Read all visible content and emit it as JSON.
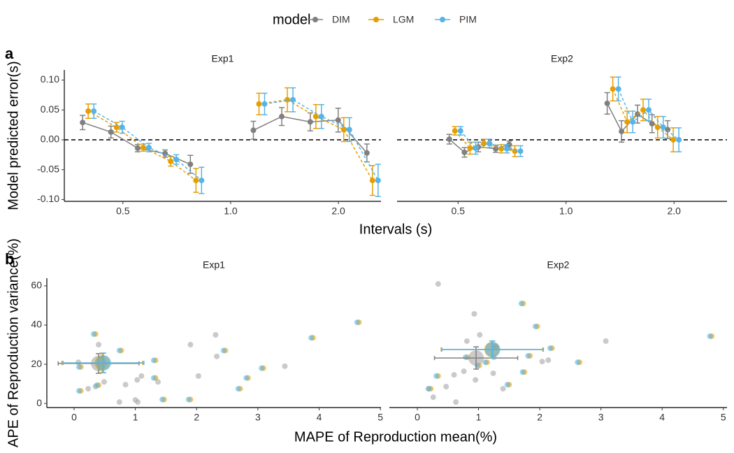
{
  "chart_data": [
    {
      "type": "line",
      "tag": "a",
      "legend_title": "model",
      "log_x": true,
      "hline": 0,
      "xlabel": "Intervals (s)",
      "ylabel": "Model predicted error(s)",
      "ylim": [
        -0.103,
        0.117
      ],
      "yticks": [
        {
          "value": -0.1,
          "label": "-0.10"
        },
        {
          "value": -0.05,
          "label": "-0.05"
        },
        {
          "value": 0,
          "label": "0.00"
        },
        {
          "value": 0.05,
          "label": "0.05"
        },
        {
          "value": 0.1,
          "label": "0.10"
        }
      ],
      "xticks": [
        0.5,
        {
          "value": 1,
          "label": "1.0"
        },
        {
          "value": 2,
          "label": "2.0"
        }
      ],
      "series": [
        {
          "name": "DIM",
          "color": "#808080",
          "dashed": false
        },
        {
          "name": "LGM",
          "color": "#E69F00",
          "dashed": true
        },
        {
          "name": "PIM",
          "color": "#56B4E9",
          "dashed": true
        }
      ],
      "facets": [
        {
          "title": "Exp1",
          "xlim": [
            0.343,
            2.63
          ],
          "x": [
            0.4,
            0.48,
            0.57,
            0.68,
            0.8,
            1.2,
            1.44,
            1.73,
            2.07,
            2.49
          ],
          "values": [
            [
              0.029,
              0.013,
              -0.014,
              -0.023,
              -0.041,
              0.016,
              0.039,
              0.03,
              0.033,
              -0.022
            ],
            [
              0.048,
              0.021,
              -0.013,
              -0.036,
              -0.068,
              0.06,
              0.067,
              0.039,
              0.017,
              -0.068
            ],
            [
              0.048,
              0.021,
              -0.013,
              -0.033,
              -0.068,
              0.06,
              0.067,
              0.039,
              0.017,
              -0.068
            ]
          ],
          "errors": [
            [
              0.012,
              0.01,
              0.006,
              0.006,
              0.015,
              0.015,
              0.015,
              0.015,
              0.02,
              0.015
            ],
            [
              0.012,
              0.008,
              0.006,
              0.008,
              0.02,
              0.018,
              0.02,
              0.02,
              0.02,
              0.025
            ],
            [
              0.012,
              0.01,
              0.007,
              0.008,
              0.022,
              0.018,
              0.02,
              0.02,
              0.02,
              0.027
            ]
          ]
        },
        {
          "title": "Exp2",
          "xlim": [
            0.338,
            2.81
          ],
          "x": [
            0.49,
            0.54,
            0.59,
            0.66,
            0.72,
            1.35,
            1.48,
            1.64,
            1.8,
            1.99
          ],
          "values": [
            [
              0.001,
              -0.021,
              -0.012,
              -0.015,
              -0.008,
              0.061,
              0.014,
              0.043,
              0.027,
              0.017
            ],
            [
              0.015,
              -0.014,
              -0.006,
              -0.015,
              -0.019,
              0.085,
              0.03,
              0.05,
              0.021,
              0
            ],
            [
              0.015,
              -0.014,
              -0.006,
              -0.015,
              -0.019,
              0.085,
              0.03,
              0.05,
              0.021,
              0
            ]
          ],
          "errors": [
            [
              0.008,
              0.008,
              0.008,
              0.006,
              0.006,
              0.018,
              0.018,
              0.015,
              0.015,
              0.015
            ],
            [
              0.007,
              0.01,
              0.007,
              0.007,
              0.009,
              0.02,
              0.018,
              0.018,
              0.018,
              0.02
            ],
            [
              0.007,
              0.01,
              0.007,
              0.007,
              0.009,
              0.02,
              0.018,
              0.018,
              0.018,
              0.02
            ]
          ]
        }
      ]
    },
    {
      "type": "scatter",
      "tag": "b",
      "xlabel": "MAPE of Reproduction mean(%)",
      "ylabel": "APE of Reproduction variance(%)",
      "ylim": [
        -2.1,
        63.9
      ],
      "yticks": [
        0,
        20,
        40,
        60
      ],
      "xticks": [
        0,
        1,
        2,
        3,
        4,
        5
      ],
      "colors": [
        "#a6a6a6",
        "#E69F00",
        "#56B4E9"
      ],
      "facets": [
        {
          "title": "Exp1",
          "xlim": [
            -0.445,
            5.01
          ],
          "x": [
            [
              0.4,
              0.07,
              0.23,
              0.35,
              0.49,
              0.84,
              1.03,
              1.1,
              1.37,
              0.74,
              1.0,
              1.04,
              1.9,
              2.03,
              2.31,
              2.33,
              3.44
            ],
            [
              0.35,
              0.11,
              0.11,
              0.4,
              0.77,
              1.33,
              1.33,
              1.47,
              1.9,
              2.47,
              2.84,
              2.71,
              3.09,
              3.9,
              4.65
            ],
            [
              0.32,
              0.08,
              0.08,
              0.37,
              0.74,
              1.3,
              1.3,
              1.44,
              1.87,
              2.44,
              2.81,
              2.68,
              3.06,
              3.87,
              4.62
            ]
          ],
          "y": [
            [
              30,
              21,
              7.5,
              8.6,
              11,
              9.6,
              12,
              14,
              11,
              0.7,
              1.8,
              0.7,
              30,
              14,
              35,
              24,
              19
            ],
            [
              35.4,
              6.4,
              18.6,
              9.3,
              27,
              22,
              13,
              2,
              2,
              27,
              13,
              7.5,
              18,
              33.5,
              41.4
            ],
            [
              35.4,
              6.4,
              18.6,
              9.3,
              27,
              22,
              13,
              2,
              2,
              27,
              13,
              7.5,
              18,
              33.5,
              41.4
            ]
          ],
          "mean_x": [
            0.4,
            0.46,
            0.48
          ],
          "mean_y": [
            20.4,
            20.7,
            20.7
          ],
          "mean_xerr": [
            0.66,
            0.66,
            0.66
          ],
          "mean_yerr": [
            5,
            5,
            5
          ]
        },
        {
          "title": "Exp2",
          "xlim": [
            -0.457,
            5.06
          ],
          "x": [
            [
              0.34,
              0.93,
              0.81,
              1.02,
              0.6,
              0.76,
              0.95,
              0.18,
              0.26,
              0.47,
              0.63,
              1.24,
              1.4,
              2.04,
              2.14,
              3.08,
              1.25
            ],
            [
              1.73,
              1.96,
              0.34,
              0.22,
              0.82,
              1.01,
              1.14,
              1.5,
              1.75,
              1.84,
              2.2,
              2.65,
              4.81,
              1.29
            ],
            [
              1.7,
              1.93,
              0.31,
              0.19,
              0.79,
              0.98,
              1.11,
              1.47,
              1.72,
              1.81,
              2.17,
              2.62,
              4.78,
              1.26
            ]
          ],
          "y": [
            [
              61,
              45.7,
              31.8,
              35,
              14.6,
              16.4,
              12,
              7.5,
              3.2,
              8.6,
              0.7,
              15.4,
              7.5,
              21.4,
              22.1,
              31.8,
              23.6
            ],
            [
              51,
              39.3,
              14,
              7.5,
              23.6,
              19.3,
              21,
              9.6,
              16,
              24.3,
              28.2,
              21,
              34.3,
              28.9
            ],
            [
              51,
              39.3,
              14,
              7.5,
              23.6,
              19.3,
              21,
              9.6,
              16,
              24.3,
              28.2,
              21,
              34.3,
              28.9
            ]
          ],
          "mean_x": [
            0.96,
            1.22,
            1.23
          ],
          "mean_y": [
            23.2,
            27.5,
            27.5
          ],
          "mean_xerr": [
            0.68,
            0.83,
            0.83
          ],
          "mean_yerr": [
            5.7,
            4.4,
            4.4
          ]
        }
      ]
    }
  ]
}
